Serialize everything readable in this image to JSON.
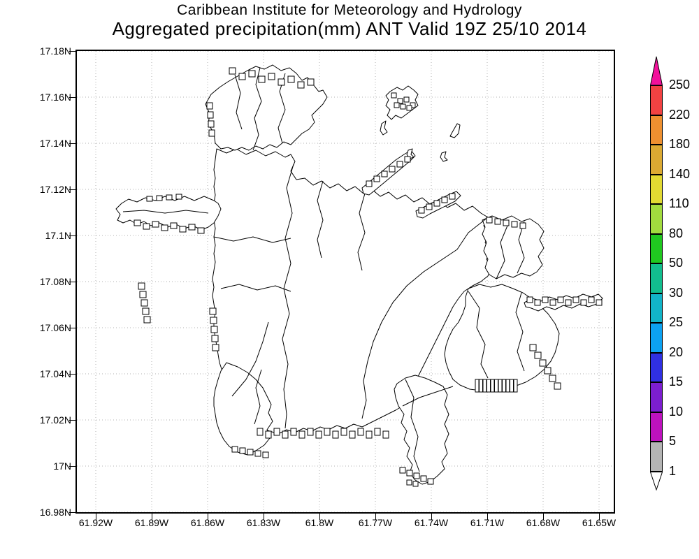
{
  "title": {
    "line1": "Caribbean Institute for Meteorology and Hydrology",
    "line2": "Aggregated precipitation(mm) ANT Valid 19Z 25/10 2014"
  },
  "axes": {
    "lat_ticks": [
      "17.18N",
      "17.16N",
      "17.14N",
      "17.12N",
      "17.1N",
      "17.08N",
      "17.06N",
      "17.04N",
      "17.02N",
      "17N",
      "16.98N"
    ],
    "lon_ticks": [
      "61.92W",
      "61.89W",
      "61.86W",
      "61.83W",
      "61.8W",
      "61.77W",
      "61.74W",
      "61.71W",
      "61.68W",
      "61.65W"
    ]
  },
  "colorbar": {
    "labels_top_to_bottom": [
      "250",
      "220",
      "180",
      "140",
      "110",
      "80",
      "50",
      "30",
      "25",
      "20",
      "15",
      "10",
      "5",
      "1"
    ],
    "segments_top_to_bottom": [
      {
        "range": "> 250",
        "color": "#f2109b",
        "shape": "up-arrow"
      },
      {
        "range": "220-250",
        "color": "#f24242"
      },
      {
        "range": "180-220",
        "color": "#ee9030"
      },
      {
        "range": "140-180",
        "color": "#dcaa32"
      },
      {
        "range": "110-140",
        "color": "#e2da32"
      },
      {
        "range": "80-110",
        "color": "#a2dc3e"
      },
      {
        "range": "50-80",
        "color": "#20c820"
      },
      {
        "range": "30-50",
        "color": "#12be8e"
      },
      {
        "range": "25-30",
        "color": "#12b4c8"
      },
      {
        "range": "20-25",
        "color": "#0ca2f2"
      },
      {
        "range": "15-20",
        "color": "#3030e2"
      },
      {
        "range": "10-15",
        "color": "#7c1ed0"
      },
      {
        "range": "5-10",
        "color": "#be12be"
      },
      {
        "range": "1-5",
        "color": "#b4b4b4"
      },
      {
        "range": "< 1",
        "color": "#ffffff",
        "shape": "down-arrow"
      }
    ]
  },
  "chart_data": {
    "type": "map",
    "title": "Aggregated precipitation(mm) ANT Valid 19Z 25/10 2014",
    "institution": "Caribbean Institute for Meteorology and Hydrology",
    "region_code": "ANT",
    "valid_time": "19Z 25/10 2014",
    "units": "mm",
    "lon_ticks": [
      "61.92W",
      "61.89W",
      "61.86W",
      "61.83W",
      "61.8W",
      "61.77W",
      "61.74W",
      "61.71W",
      "61.68W",
      "61.65W"
    ],
    "lat_ticks": [
      "17.18N",
      "17.16N",
      "17.14N",
      "17.12N",
      "17.1N",
      "17.08N",
      "17.06N",
      "17.04N",
      "17.02N",
      "17N",
      "16.98N"
    ],
    "grid": "dotted",
    "colorbar_levels_mm": [
      1,
      5,
      10,
      15,
      20,
      25,
      30,
      50,
      80,
      110,
      140,
      180,
      220,
      250
    ],
    "colorbar_colors_low_to_high": [
      "#ffffff",
      "#b4b4b4",
      "#be12be",
      "#7c1ed0",
      "#3030e2",
      "#0ca2f2",
      "#12b4c8",
      "#12be8e",
      "#20c820",
      "#a2dc3e",
      "#e2da32",
      "#dcaa32",
      "#ee9030",
      "#f24242",
      "#f2109b"
    ],
    "shaded_precipitation_cells": [],
    "map_content": "watershed/catchment outline map of island, no shaded values"
  }
}
